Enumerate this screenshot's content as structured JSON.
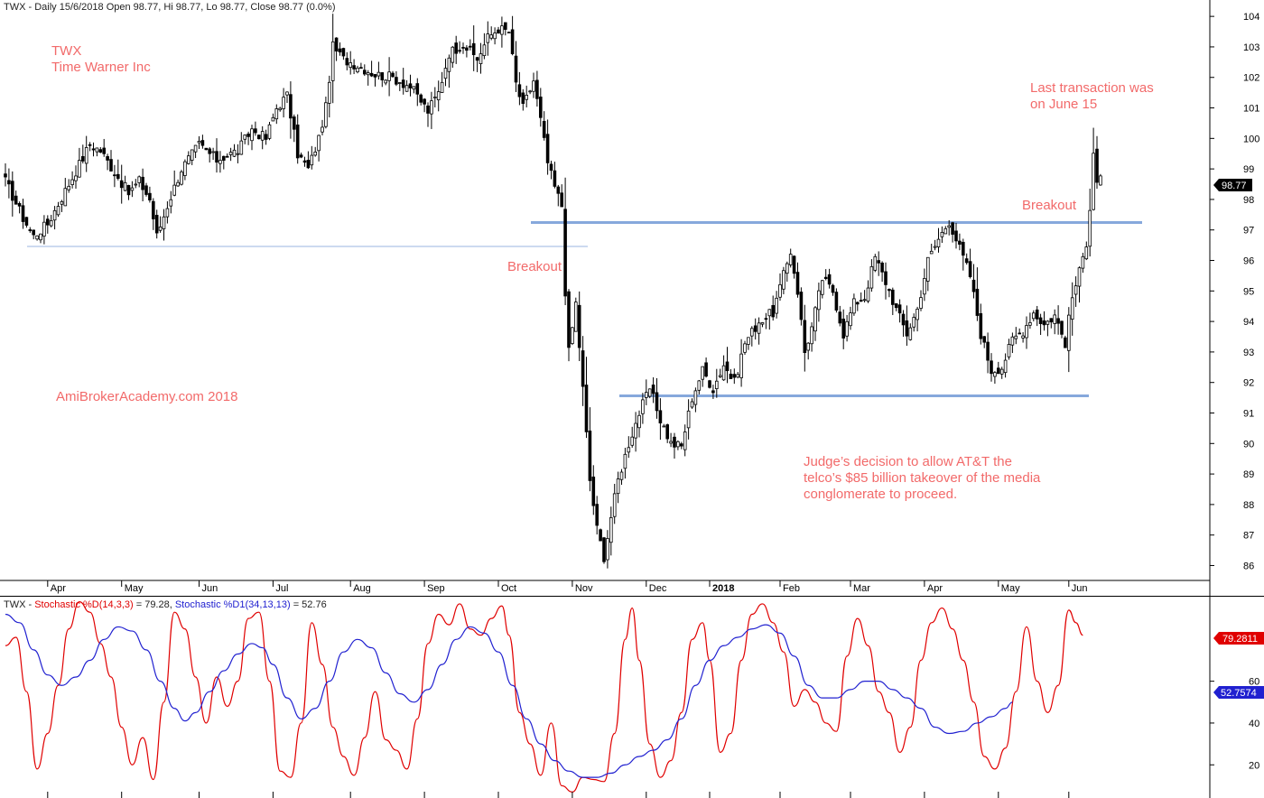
{
  "header": {
    "symbol": "TWX",
    "main": "TWX - Daily 15/6/2018 Open 98.77, Hi 98.77, Lo 98.77, Close 98.77 (0.0%)",
    "stoch_prefix": "TWX - ",
    "stoch_d_label": "Stochastic %D(14,3,3)",
    "stoch_d_value": " = 79.28, ",
    "stoch_d1_label": "Stochastic %D1(34,13,13)",
    "stoch_d1_value": " = 52.76"
  },
  "annotations": {
    "ticker": "TWX",
    "company": "Time Warner Inc",
    "watermark": "AmiBrokerAcademy.com  2018",
    "breakout_left": "Breakout",
    "breakout_right": "Breakout",
    "last_line1": "Last transaction was",
    "last_line2": "on June 15",
    "news_line1": "Judge’s decision to allow AT&T the",
    "news_line2": "telco’s $85 billion takeover of the media",
    "news_line3": "conglomerate to proceed."
  },
  "badges": {
    "price": "98.77",
    "stoch_d": "79.2811",
    "stoch_d1": "52.7574"
  },
  "colors": {
    "candle": "#000000",
    "support_line": "#7ea6dc",
    "stoch_d": "#e00000",
    "stoch_d1": "#2020d0",
    "annotation": "#f26a6a"
  },
  "chart_data": [
    {
      "type": "candlestick",
      "title": "TWX - Daily 15/6/2018",
      "ylim": [
        85.6,
        104.3
      ],
      "y_ticks": [
        86,
        87,
        88,
        89,
        90,
        91,
        92,
        93,
        94,
        95,
        96,
        97,
        98,
        99,
        100,
        101,
        102,
        103,
        104
      ],
      "x_ticks": [
        "Apr",
        "May",
        "Jun",
        "Jul",
        "Aug",
        "Sep",
        "Oct",
        "Nov",
        "Dec",
        "2018",
        "Feb",
        "Mar",
        "Apr",
        "May",
        "Jun"
      ],
      "x_tick_index": [
        12,
        33,
        55,
        76,
        98,
        119,
        140,
        161,
        182,
        200,
        220,
        240,
        261,
        282,
        302
      ],
      "last_close": 98.77,
      "close_anchors": [
        [
          0,
          98.6
        ],
        [
          5,
          97.4
        ],
        [
          8,
          96.8
        ],
        [
          12,
          97.2
        ],
        [
          18,
          98.5
        ],
        [
          24,
          99.8
        ],
        [
          27,
          99.6
        ],
        [
          31,
          98.9
        ],
        [
          35,
          98.2
        ],
        [
          38,
          98.6
        ],
        [
          41,
          98.0
        ],
        [
          43,
          96.8
        ],
        [
          46,
          97.8
        ],
        [
          50,
          99.0
        ],
        [
          55,
          99.8
        ],
        [
          60,
          99.3
        ],
        [
          66,
          99.6
        ],
        [
          70,
          100.3
        ],
        [
          74,
          100.0
        ],
        [
          77,
          101.0
        ],
        [
          80,
          101.4
        ],
        [
          83,
          99.5
        ],
        [
          86,
          99.0
        ],
        [
          89,
          100.0
        ],
        [
          91,
          101.0
        ],
        [
          93,
          103.0
        ],
        [
          96,
          102.6
        ],
        [
          100,
          102.4
        ],
        [
          105,
          102.1
        ],
        [
          110,
          102.0
        ],
        [
          115,
          101.7
        ],
        [
          120,
          100.9
        ],
        [
          123,
          101.5
        ],
        [
          126,
          102.8
        ],
        [
          130,
          103.1
        ],
        [
          134,
          102.6
        ],
        [
          137,
          103.3
        ],
        [
          140,
          103.6
        ],
        [
          143,
          103.5
        ],
        [
          145,
          101.8
        ],
        [
          147,
          101.0
        ],
        [
          150,
          101.9
        ],
        [
          152,
          100.6
        ],
        [
          154,
          99.2
        ],
        [
          156,
          98.4
        ],
        [
          158,
          97.8
        ],
        [
          159,
          95.0
        ],
        [
          160,
          93.0
        ],
        [
          162,
          94.6
        ],
        [
          164,
          91.8
        ],
        [
          166,
          88.8
        ],
        [
          168,
          87.2
        ],
        [
          170,
          86.3
        ],
        [
          172,
          87.6
        ],
        [
          174,
          88.8
        ],
        [
          177,
          90.0
        ],
        [
          180,
          91.0
        ],
        [
          183,
          91.8
        ],
        [
          186,
          90.8
        ],
        [
          189,
          90.0
        ],
        [
          192,
          89.9
        ],
        [
          195,
          91.5
        ],
        [
          198,
          92.4
        ],
        [
          201,
          91.8
        ],
        [
          204,
          92.6
        ],
        [
          207,
          92.0
        ],
        [
          210,
          93.3
        ],
        [
          214,
          94.0
        ],
        [
          218,
          94.3
        ],
        [
          221,
          95.5
        ],
        [
          223,
          96.3
        ],
        [
          225,
          95.0
        ],
        [
          227,
          93.0
        ],
        [
          229,
          93.8
        ],
        [
          232,
          95.4
        ],
        [
          235,
          95.0
        ],
        [
          238,
          93.6
        ],
        [
          241,
          94.6
        ],
        [
          244,
          94.8
        ],
        [
          247,
          96.1
        ],
        [
          250,
          95.3
        ],
        [
          253,
          94.4
        ],
        [
          256,
          93.6
        ],
        [
          259,
          94.4
        ],
        [
          262,
          96.0
        ],
        [
          265,
          96.7
        ],
        [
          268,
          97.3
        ],
        [
          271,
          96.4
        ],
        [
          274,
          95.5
        ],
        [
          277,
          93.6
        ],
        [
          280,
          92.4
        ],
        [
          283,
          92.5
        ],
        [
          286,
          93.4
        ],
        [
          289,
          93.7
        ],
        [
          292,
          94.3
        ],
        [
          295,
          93.9
        ],
        [
          298,
          94.2
        ],
        [
          301,
          93.3
        ],
        [
          303,
          94.8
        ],
        [
          305,
          95.6
        ],
        [
          307,
          96.6
        ],
        [
          308,
          97.8
        ],
        [
          309,
          99.6
        ],
        [
          310,
          98.6
        ],
        [
          311,
          98.77
        ]
      ]
    },
    {
      "type": "line",
      "title": "Stochastic",
      "ylim": [
        5,
        100
      ],
      "y_ticks": [
        20,
        40,
        60
      ],
      "series": [
        {
          "name": "Stochastic %D(14,3,3)",
          "last": 79.28,
          "points": [
            [
              0,
              77
            ],
            [
              3,
              81
            ],
            [
              6,
              55
            ],
            [
              9,
              18
            ],
            [
              12,
              35
            ],
            [
              15,
              58
            ],
            [
              18,
              85
            ],
            [
              21,
              98
            ],
            [
              24,
              93
            ],
            [
              27,
              78
            ],
            [
              30,
              62
            ],
            [
              33,
              38
            ],
            [
              36,
              20
            ],
            [
              39,
              33
            ],
            [
              42,
              13
            ],
            [
              45,
              50
            ],
            [
              48,
              93
            ],
            [
              51,
              85
            ],
            [
              54,
              62
            ],
            [
              57,
              40
            ],
            [
              60,
              62
            ],
            [
              63,
              48
            ],
            [
              66,
              60
            ],
            [
              69,
              90
            ],
            [
              72,
              93
            ],
            [
              75,
              60
            ],
            [
              78,
              17
            ],
            [
              81,
              14
            ],
            [
              84,
              40
            ],
            [
              87,
              88
            ],
            [
              90,
              68
            ],
            [
              93,
              38
            ],
            [
              96,
              24
            ],
            [
              99,
              15
            ],
            [
              102,
              33
            ],
            [
              105,
              55
            ],
            [
              108,
              32
            ],
            [
              111,
              27
            ],
            [
              114,
              18
            ],
            [
              117,
              42
            ],
            [
              120,
              78
            ],
            [
              123,
              92
            ],
            [
              126,
              87
            ],
            [
              129,
              97
            ],
            [
              132,
              85
            ],
            [
              135,
              82
            ],
            [
              138,
              90
            ],
            [
              141,
              96
            ],
            [
              143,
              82
            ],
            [
              146,
              45
            ],
            [
              149,
              30
            ],
            [
              152,
              15
            ],
            [
              155,
              40
            ],
            [
              158,
              10
            ],
            [
              161,
              7
            ],
            [
              164,
              14
            ],
            [
              167,
              13
            ],
            [
              170,
              12
            ],
            [
              173,
              35
            ],
            [
              176,
              80
            ],
            [
              178,
              95
            ],
            [
              180,
              70
            ],
            [
              183,
              30
            ],
            [
              186,
              14
            ],
            [
              189,
              22
            ],
            [
              192,
              45
            ],
            [
              195,
              80
            ],
            [
              198,
              88
            ],
            [
              200,
              70
            ],
            [
              203,
              26
            ],
            [
              206,
              35
            ],
            [
              209,
              70
            ],
            [
              212,
              92
            ],
            [
              215,
              97
            ],
            [
              218,
              88
            ],
            [
              221,
              74
            ],
            [
              224,
              48
            ],
            [
              227,
              56
            ],
            [
              230,
              50
            ],
            [
              233,
              40
            ],
            [
              236,
              36
            ],
            [
              239,
              72
            ],
            [
              242,
              90
            ],
            [
              245,
              77
            ],
            [
              248,
              55
            ],
            [
              251,
              45
            ],
            [
              254,
              26
            ],
            [
              257,
              38
            ],
            [
              260,
              70
            ],
            [
              263,
              88
            ],
            [
              266,
              95
            ],
            [
              269,
              85
            ],
            [
              272,
              70
            ],
            [
              275,
              50
            ],
            [
              278,
              24
            ],
            [
              281,
              18
            ],
            [
              284,
              28
            ],
            [
              287,
              55
            ],
            [
              290,
              86
            ],
            [
              293,
              60
            ],
            [
              296,
              45
            ],
            [
              299,
              58
            ],
            [
              302,
              94
            ],
            [
              304,
              88
            ],
            [
              306,
              82
            ]
          ]
        },
        {
          "name": "Stochastic %D1(34,13,13)",
          "last": 52.76,
          "points": [
            [
              0,
              92
            ],
            [
              4,
              88
            ],
            [
              8,
              75
            ],
            [
              12,
              63
            ],
            [
              16,
              58
            ],
            [
              20,
              62
            ],
            [
              24,
              70
            ],
            [
              28,
              80
            ],
            [
              32,
              86
            ],
            [
              36,
              84
            ],
            [
              40,
              75
            ],
            [
              44,
              60
            ],
            [
              48,
              47
            ],
            [
              51,
              41
            ],
            [
              54,
              45
            ],
            [
              58,
              55
            ],
            [
              62,
              65
            ],
            [
              66,
              73
            ],
            [
              70,
              78
            ],
            [
              73,
              76
            ],
            [
              76,
              68
            ],
            [
              80,
              52
            ],
            [
              84,
              42
            ],
            [
              88,
              47
            ],
            [
              92,
              60
            ],
            [
              96,
              74
            ],
            [
              100,
              80
            ],
            [
              104,
              76
            ],
            [
              108,
              64
            ],
            [
              112,
              54
            ],
            [
              116,
              50
            ],
            [
              120,
              56
            ],
            [
              124,
              68
            ],
            [
              128,
              80
            ],
            [
              132,
              86
            ],
            [
              136,
              83
            ],
            [
              140,
              74
            ],
            [
              144,
              58
            ],
            [
              148,
              42
            ],
            [
              152,
              30
            ],
            [
              156,
              22
            ],
            [
              160,
              17
            ],
            [
              164,
              14
            ],
            [
              168,
              14
            ],
            [
              172,
              16
            ],
            [
              176,
              20
            ],
            [
              180,
              24
            ],
            [
              184,
              27
            ],
            [
              188,
              32
            ],
            [
              192,
              42
            ],
            [
              196,
              58
            ],
            [
              200,
              70
            ],
            [
              204,
              77
            ],
            [
              208,
              81
            ],
            [
              212,
              85
            ],
            [
              216,
              87
            ],
            [
              220,
              83
            ],
            [
              224,
              72
            ],
            [
              228,
              58
            ],
            [
              232,
              52
            ],
            [
              236,
              52
            ],
            [
              240,
              56
            ],
            [
              244,
              60
            ],
            [
              248,
              60
            ],
            [
              252,
              56
            ],
            [
              256,
              52
            ],
            [
              260,
              47
            ],
            [
              264,
              38
            ],
            [
              268,
              35
            ],
            [
              272,
              36
            ],
            [
              276,
              40
            ],
            [
              280,
              43
            ],
            [
              284,
              47
            ],
            [
              286,
              50
            ]
          ]
        }
      ]
    }
  ]
}
